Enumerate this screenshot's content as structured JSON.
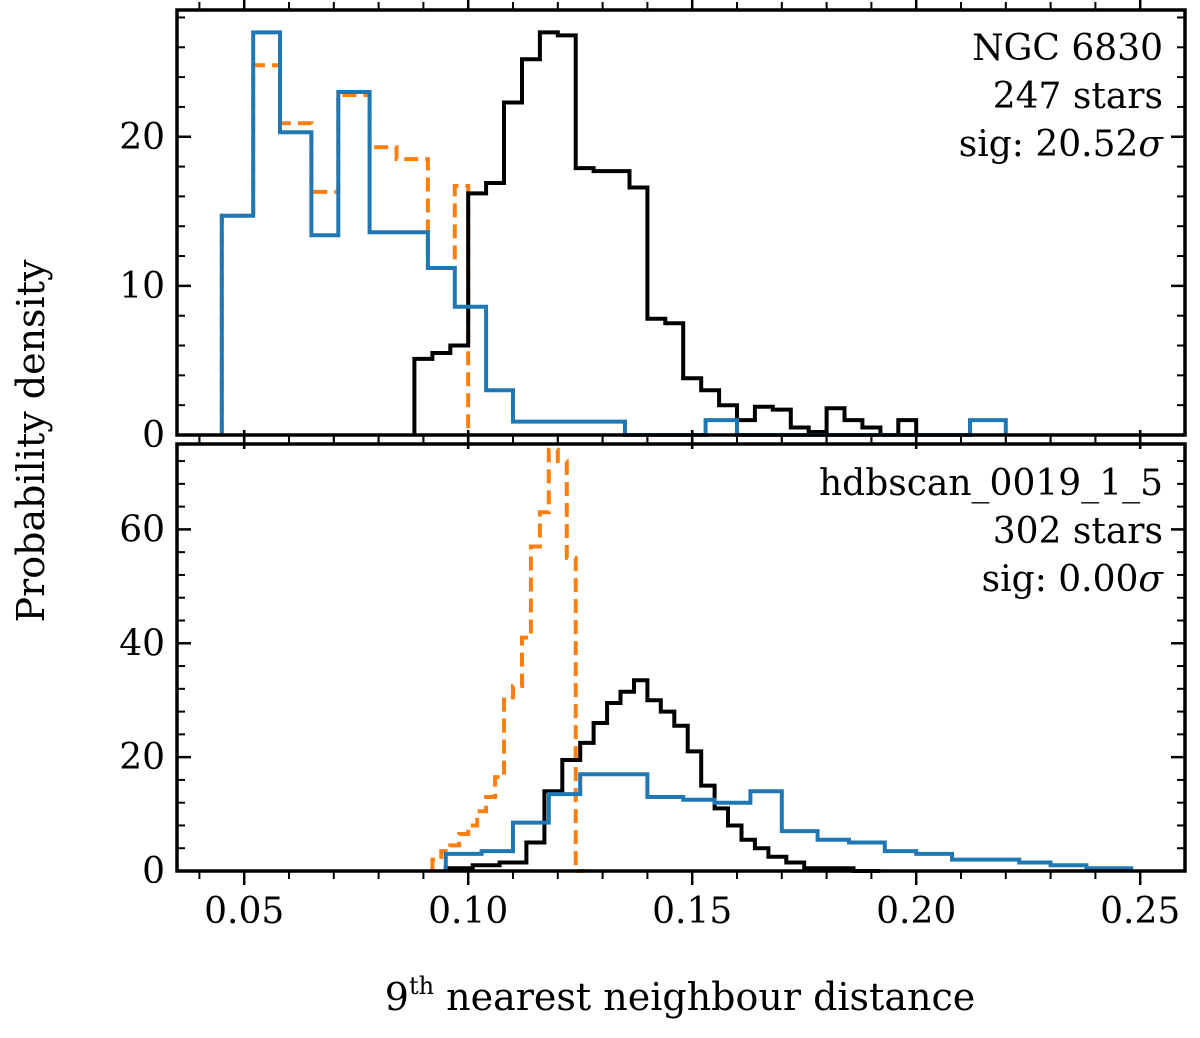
{
  "figure": {
    "ylabel": "Probability density",
    "xlabel_main": "9",
    "xlabel_sup": "th",
    "xlabel_rest": " nearest neighbour distance",
    "series_colors": {
      "black": "#000000",
      "blue": "#1f77b4",
      "orange": "#ff7f0e"
    }
  },
  "chart_data": [
    {
      "type": "step-histogram",
      "panel": "top",
      "annotation": {
        "name": "NGC 6830",
        "stars": "247 stars",
        "sig_prefix": "sig: ",
        "sig_value": "20.52",
        "sig_unit": "σ"
      },
      "xlim": [
        0.035,
        0.26
      ],
      "ylim": [
        0,
        28.5
      ],
      "yticks": [
        0,
        10,
        20
      ],
      "ytick_labels": [
        "0",
        "10",
        "20"
      ],
      "xticks": [
        0.05,
        0.1,
        0.15,
        0.2,
        0.25
      ],
      "series": [
        {
          "name": "orange-dashed",
          "color": "#ff7f0e",
          "dash": true,
          "edges": [
            0.045,
            0.052,
            0.058,
            0.065,
            0.071,
            0.078,
            0.084,
            0.091,
            0.097,
            0.1
          ],
          "values": [
            14.7,
            24.8,
            20.9,
            16.3,
            22.8,
            19.3,
            18.5,
            11.2,
            16.7
          ]
        },
        {
          "name": "black",
          "color": "#000000",
          "dash": false,
          "edges": [
            0.088,
            0.092,
            0.096,
            0.1,
            0.104,
            0.108,
            0.112,
            0.116,
            0.12,
            0.124,
            0.128,
            0.132,
            0.136,
            0.14,
            0.144,
            0.148,
            0.152,
            0.156,
            0.16,
            0.164,
            0.168,
            0.172,
            0.176,
            0.18,
            0.184,
            0.188,
            0.192,
            0.196,
            0.2,
            0.204
          ],
          "values": [
            5.1,
            5.5,
            6.0,
            16.2,
            16.9,
            22.3,
            25.2,
            27.0,
            26.8,
            17.9,
            17.7,
            17.7,
            16.6,
            7.8,
            7.5,
            3.8,
            3.0,
            2.0,
            1.0,
            1.9,
            1.7,
            0.5,
            0.2,
            1.8,
            1.0,
            0.5,
            0.0,
            1.0,
            0.0
          ]
        },
        {
          "name": "blue",
          "color": "#1f77b4",
          "dash": false,
          "edges": [
            0.045,
            0.052,
            0.058,
            0.065,
            0.071,
            0.078,
            0.084,
            0.091,
            0.097,
            0.104,
            0.11,
            0.116,
            0.123,
            0.135,
            0.153,
            0.16,
            0.172,
            0.185,
            0.197,
            0.212,
            0.22
          ],
          "values": [
            14.7,
            27.0,
            20.3,
            13.4,
            23.0,
            13.6,
            13.6,
            11.2,
            8.6,
            3.0,
            0.9,
            0.9,
            0.9,
            0.0,
            1.0,
            0.0,
            0.0,
            0.0,
            0.0,
            1.0
          ]
        }
      ]
    },
    {
      "type": "step-histogram",
      "panel": "bottom",
      "annotation": {
        "name": "hdbscan_0019_1_5",
        "stars": "302 stars",
        "sig_prefix": "sig: ",
        "sig_value": "0.00",
        "sig_unit": "σ"
      },
      "xlim": [
        0.035,
        0.26
      ],
      "ylim": [
        0,
        75
      ],
      "yticks": [
        0,
        20,
        40,
        60
      ],
      "ytick_labels": [
        "0",
        "20",
        "40",
        "60"
      ],
      "xticks": [
        0.05,
        0.1,
        0.15,
        0.2,
        0.25
      ],
      "xtick_labels": [
        "0.05",
        "0.10",
        "0.15",
        "0.20",
        "0.25"
      ],
      "series": [
        {
          "name": "orange-dashed",
          "color": "#ff7f0e",
          "dash": true,
          "edges": [
            0.092,
            0.094,
            0.096,
            0.098,
            0.1,
            0.102,
            0.104,
            0.106,
            0.108,
            0.11,
            0.112,
            0.114,
            0.116,
            0.118,
            0.12,
            0.122,
            0.124,
            0.126
          ],
          "values": [
            2.0,
            3.5,
            4.5,
            6.5,
            8.0,
            10.5,
            13.0,
            16.5,
            30.5,
            32.5,
            41.0,
            57.0,
            63.0,
            74.0,
            72.0,
            55.0,
            0.0
          ]
        },
        {
          "name": "black",
          "color": "#000000",
          "dash": false,
          "edges": [
            0.095,
            0.101,
            0.107,
            0.113,
            0.117,
            0.121,
            0.125,
            0.128,
            0.131,
            0.134,
            0.137,
            0.14,
            0.143,
            0.146,
            0.149,
            0.152,
            0.155,
            0.158,
            0.161,
            0.164,
            0.167,
            0.171,
            0.175,
            0.18,
            0.186,
            0.192
          ],
          "values": [
            0.5,
            1.0,
            1.5,
            5.0,
            14.0,
            19.5,
            22.5,
            26.0,
            29.5,
            31.5,
            33.5,
            30.0,
            28.0,
            25.5,
            21.0,
            15.0,
            11.0,
            8.0,
            5.5,
            4.0,
            2.5,
            1.5,
            0.5,
            0.5,
            0.0
          ]
        },
        {
          "name": "blue",
          "color": "#1f77b4",
          "dash": false,
          "edges": [
            0.095,
            0.103,
            0.11,
            0.118,
            0.125,
            0.133,
            0.14,
            0.148,
            0.155,
            0.163,
            0.17,
            0.178,
            0.185,
            0.193,
            0.2,
            0.208,
            0.215,
            0.223,
            0.23,
            0.238,
            0.248
          ],
          "values": [
            3.0,
            3.5,
            8.5,
            13.5,
            17.0,
            17.0,
            13.0,
            12.5,
            12.0,
            14.0,
            7.0,
            5.5,
            5.0,
            3.5,
            3.0,
            2.0,
            2.0,
            1.5,
            1.0,
            0.5
          ]
        }
      ]
    }
  ]
}
